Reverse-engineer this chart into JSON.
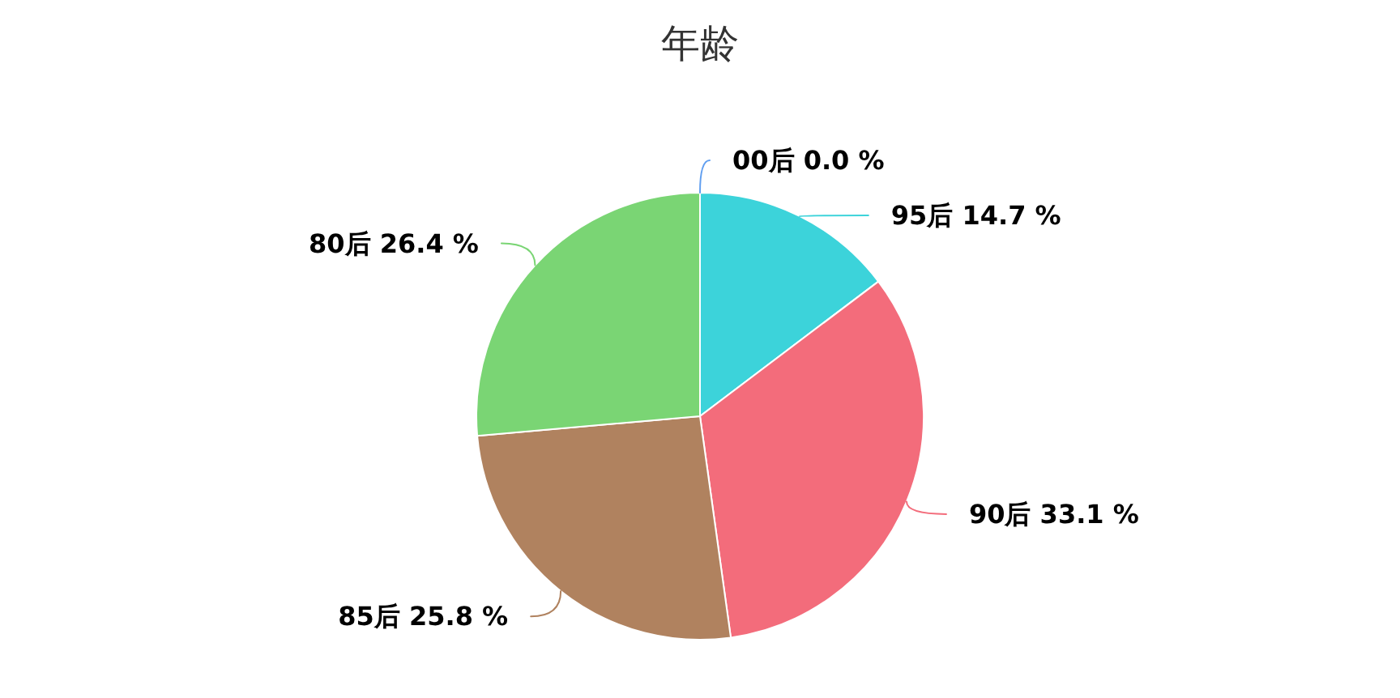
{
  "chart_data": {
    "type": "pie",
    "title": "年龄",
    "categories": [
      "00后",
      "95后",
      "90后",
      "85后",
      "80后"
    ],
    "values": [
      0.0,
      14.7,
      33.1,
      25.8,
      26.4
    ],
    "colors": [
      "#619ff0",
      "#3cd3da",
      "#f36c7b",
      "#b0825f",
      "#7ad574"
    ],
    "value_labels": [
      "0.0 %",
      "14.7 %",
      "33.1 %",
      "25.8 %",
      "26.4 %"
    ]
  }
}
